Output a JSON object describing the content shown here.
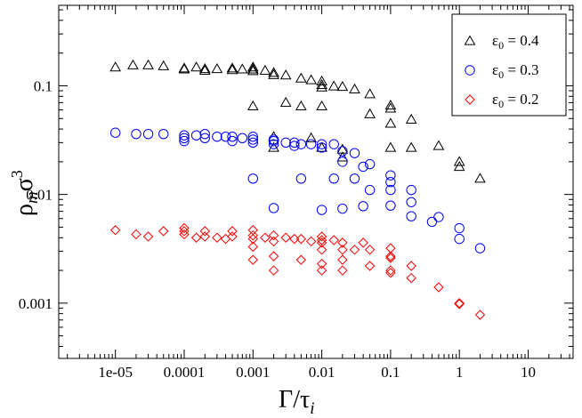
{
  "chart_data": {
    "type": "scatter",
    "title": "",
    "xlabel": {
      "main": "Γ/τ",
      "sub": "i"
    },
    "ylabel": {
      "main": "ρ",
      "sub": "m",
      "mid": "σ",
      "sup": "3"
    },
    "x_scale": "log",
    "y_scale": "log",
    "xlim": [
      1.5e-06,
      45
    ],
    "ylim": [
      0.00031,
      0.55
    ],
    "grid": false,
    "legend_position": "top-right",
    "x_ticks": [
      {
        "value": 1e-05,
        "label": "1e-05"
      },
      {
        "value": 0.0001,
        "label": "0.0001"
      },
      {
        "value": 0.001,
        "label": "0.001"
      },
      {
        "value": 0.01,
        "label": "0.01"
      },
      {
        "value": 0.1,
        "label": "0.1"
      },
      {
        "value": 1,
        "label": "1"
      },
      {
        "value": 10,
        "label": "10"
      }
    ],
    "y_ticks": [
      {
        "value": 0.001,
        "label": "0.001"
      },
      {
        "value": 0.01,
        "label": "0.01"
      },
      {
        "value": 0.1,
        "label": "0.1"
      }
    ],
    "series": [
      {
        "name": "ε0 = 0.4",
        "legend": {
          "symbol": "ε",
          "sub": "0",
          "rest": " = 0.4"
        },
        "marker": "triangle",
        "color": "#000000",
        "points": [
          [
            1e-05,
            0.148
          ],
          [
            1.8e-05,
            0.155
          ],
          [
            3e-05,
            0.155
          ],
          [
            5e-05,
            0.152
          ],
          [
            0.0001,
            0.145
          ],
          [
            0.0001,
            0.142
          ],
          [
            0.00015,
            0.148
          ],
          [
            0.0002,
            0.143
          ],
          [
            0.0002,
            0.138
          ],
          [
            0.0003,
            0.143
          ],
          [
            0.0005,
            0.145
          ],
          [
            0.0005,
            0.14
          ],
          [
            0.0007,
            0.142
          ],
          [
            0.001,
            0.148
          ],
          [
            0.001,
            0.142
          ],
          [
            0.001,
            0.137
          ],
          [
            0.001,
            0.065
          ],
          [
            0.0015,
            0.138
          ],
          [
            0.002,
            0.132
          ],
          [
            0.002,
            0.126
          ],
          [
            0.002,
            0.034
          ],
          [
            0.002,
            0.027
          ],
          [
            0.003,
            0.125
          ],
          [
            0.003,
            0.07
          ],
          [
            0.005,
            0.117
          ],
          [
            0.005,
            0.065
          ],
          [
            0.007,
            0.113
          ],
          [
            0.007,
            0.033
          ],
          [
            0.01,
            0.11
          ],
          [
            0.01,
            0.102
          ],
          [
            0.01,
            0.097
          ],
          [
            0.01,
            0.065
          ],
          [
            0.01,
            0.027
          ],
          [
            0.015,
            0.099
          ],
          [
            0.02,
            0.098
          ],
          [
            0.02,
            0.026
          ],
          [
            0.02,
            0.022
          ],
          [
            0.03,
            0.093
          ],
          [
            0.05,
            0.084
          ],
          [
            0.05,
            0.055
          ],
          [
            0.1,
            0.066
          ],
          [
            0.1,
            0.062
          ],
          [
            0.1,
            0.045
          ],
          [
            0.1,
            0.027
          ],
          [
            0.2,
            0.049
          ],
          [
            0.2,
            0.027
          ],
          [
            0.5,
            0.028
          ],
          [
            1,
            0.02
          ],
          [
            1,
            0.018
          ],
          [
            2,
            0.014
          ]
        ]
      },
      {
        "name": "ε0 = 0.3",
        "legend": {
          "symbol": "ε",
          "sub": "0",
          "rest": " = 0.3"
        },
        "marker": "circle",
        "color": "#0000ff",
        "points": [
          [
            1e-05,
            0.037
          ],
          [
            2e-05,
            0.036
          ],
          [
            3e-05,
            0.036
          ],
          [
            5e-05,
            0.036
          ],
          [
            0.0001,
            0.035
          ],
          [
            0.0001,
            0.033
          ],
          [
            0.0001,
            0.031
          ],
          [
            0.00015,
            0.035
          ],
          [
            0.0002,
            0.036
          ],
          [
            0.0002,
            0.033
          ],
          [
            0.0003,
            0.034
          ],
          [
            0.0004,
            0.034
          ],
          [
            0.0005,
            0.034
          ],
          [
            0.0005,
            0.031
          ],
          [
            0.0007,
            0.033
          ],
          [
            0.001,
            0.034
          ],
          [
            0.001,
            0.032
          ],
          [
            0.001,
            0.03
          ],
          [
            0.001,
            0.014
          ],
          [
            0.002,
            0.032
          ],
          [
            0.002,
            0.031
          ],
          [
            0.002,
            0.029
          ],
          [
            0.002,
            0.0075
          ],
          [
            0.003,
            0.03
          ],
          [
            0.004,
            0.03
          ],
          [
            0.004,
            0.028
          ],
          [
            0.005,
            0.029
          ],
          [
            0.005,
            0.014
          ],
          [
            0.007,
            0.029
          ],
          [
            0.01,
            0.029
          ],
          [
            0.01,
            0.027
          ],
          [
            0.01,
            0.0072
          ],
          [
            0.015,
            0.029
          ],
          [
            0.015,
            0.014
          ],
          [
            0.02,
            0.025
          ],
          [
            0.02,
            0.02
          ],
          [
            0.02,
            0.0074
          ],
          [
            0.03,
            0.024
          ],
          [
            0.03,
            0.014
          ],
          [
            0.04,
            0.018
          ],
          [
            0.04,
            0.0078
          ],
          [
            0.05,
            0.019
          ],
          [
            0.05,
            0.011
          ],
          [
            0.1,
            0.015
          ],
          [
            0.1,
            0.013
          ],
          [
            0.1,
            0.011
          ],
          [
            0.1,
            0.0079
          ],
          [
            0.2,
            0.011
          ],
          [
            0.2,
            0.0085
          ],
          [
            0.2,
            0.0063
          ],
          [
            0.4,
            0.0056
          ],
          [
            0.5,
            0.0062
          ],
          [
            1,
            0.0049
          ],
          [
            1,
            0.0039
          ],
          [
            2,
            0.0032
          ]
        ]
      },
      {
        "name": "ε0 = 0.2",
        "legend": {
          "symbol": "ε",
          "sub": "0",
          "rest": " = 0.2"
        },
        "marker": "diamond",
        "color": "#ff0000",
        "points": [
          [
            1e-05,
            0.0047
          ],
          [
            2e-05,
            0.0043
          ],
          [
            3e-05,
            0.0041
          ],
          [
            5e-05,
            0.0046
          ],
          [
            0.0001,
            0.0049
          ],
          [
            0.0001,
            0.0046
          ],
          [
            0.0001,
            0.0043
          ],
          [
            0.00015,
            0.004
          ],
          [
            0.0002,
            0.0046
          ],
          [
            0.0002,
            0.0041
          ],
          [
            0.0003,
            0.004
          ],
          [
            0.0004,
            0.0039
          ],
          [
            0.0005,
            0.0046
          ],
          [
            0.0005,
            0.0041
          ],
          [
            0.001,
            0.0047
          ],
          [
            0.001,
            0.0042
          ],
          [
            0.001,
            0.0039
          ],
          [
            0.001,
            0.0033
          ],
          [
            0.001,
            0.0025
          ],
          [
            0.0015,
            0.004
          ],
          [
            0.002,
            0.0042
          ],
          [
            0.002,
            0.0037
          ],
          [
            0.002,
            0.0027
          ],
          [
            0.002,
            0.002
          ],
          [
            0.003,
            0.004
          ],
          [
            0.004,
            0.0039
          ],
          [
            0.005,
            0.0039
          ],
          [
            0.005,
            0.0025
          ],
          [
            0.007,
            0.0037
          ],
          [
            0.01,
            0.0041
          ],
          [
            0.01,
            0.0038
          ],
          [
            0.01,
            0.0036
          ],
          [
            0.01,
            0.0031
          ],
          [
            0.01,
            0.0023
          ],
          [
            0.01,
            0.002
          ],
          [
            0.015,
            0.0038
          ],
          [
            0.02,
            0.0036
          ],
          [
            0.02,
            0.0031
          ],
          [
            0.02,
            0.0025
          ],
          [
            0.02,
            0.002
          ],
          [
            0.03,
            0.0031
          ],
          [
            0.04,
            0.0036
          ],
          [
            0.05,
            0.0031
          ],
          [
            0.05,
            0.0022
          ],
          [
            0.1,
            0.0032
          ],
          [
            0.1,
            0.0027
          ],
          [
            0.1,
            0.0026
          ],
          [
            0.1,
            0.002
          ],
          [
            0.1,
            0.0019
          ],
          [
            0.2,
            0.0022
          ],
          [
            0.2,
            0.0017
          ],
          [
            0.5,
            0.0014
          ],
          [
            1,
            0.001
          ],
          [
            1,
            0.00098
          ],
          [
            2,
            0.00078
          ]
        ]
      }
    ]
  }
}
